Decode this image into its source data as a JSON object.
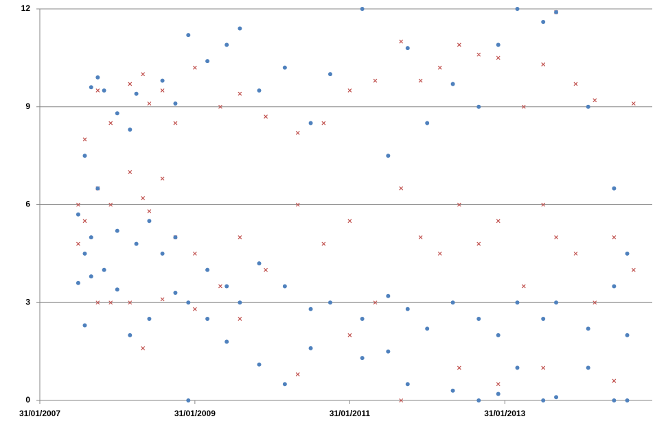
{
  "chart_data": {
    "type": "scatter",
    "xlim": [
      "31/01/2007",
      "27/12/2014"
    ],
    "xticks": [
      "31/01/2007",
      "31/01/2009",
      "31/01/2011",
      "31/01/2013"
    ],
    "ylim": [
      0,
      12
    ],
    "yticks": [
      0,
      3,
      6,
      9,
      12
    ],
    "grid": true,
    "series": [
      {
        "color": "#c0504d",
        "marker": "x",
        "x": [
          "31/07/2007",
          "31/07/2007",
          "31/08/2007",
          "31/08/2007",
          "31/10/2007",
          "31/10/2007",
          "31/10/2007",
          "31/12/2007",
          "31/12/2007",
          "31/12/2007",
          "31/03/2008",
          "31/03/2008",
          "31/03/2008",
          "31/05/2008",
          "31/05/2008",
          "31/05/2008",
          "30/06/2008",
          "30/06/2008",
          "31/08/2008",
          "31/08/2008",
          "31/08/2008",
          "31/10/2008",
          "31/10/2008",
          "31/01/2009",
          "31/01/2009",
          "31/01/2009",
          "31/05/2009",
          "31/05/2009",
          "31/08/2009",
          "31/08/2009",
          "31/08/2009",
          "31/12/2009",
          "31/12/2009",
          "31/05/2010",
          "31/05/2010",
          "31/05/2010",
          "30/09/2010",
          "30/09/2010",
          "31/01/2011",
          "31/01/2011",
          "31/01/2011",
          "31/05/2011",
          "31/05/2011",
          "30/09/2011",
          "30/09/2011",
          "30/09/2011",
          "31/12/2011",
          "31/12/2011",
          "31/03/2012",
          "31/03/2012",
          "30/06/2012",
          "30/06/2012",
          "30/06/2012",
          "30/09/2012",
          "30/09/2012",
          "31/12/2012",
          "31/12/2012",
          "31/12/2012",
          "30/04/2013",
          "30/04/2013",
          "31/07/2013",
          "31/07/2013",
          "31/07/2013",
          "30/09/2013",
          "30/09/2013",
          "31/12/2013",
          "31/12/2013",
          "31/03/2014",
          "31/03/2014",
          "30/06/2014",
          "30/06/2014",
          "30/09/2014",
          "30/09/2014"
        ],
        "values": [
          6.0,
          4.8,
          8.0,
          5.5,
          9.5,
          6.5,
          3.0,
          8.5,
          3.0,
          6.0,
          9.7,
          7.0,
          3.0,
          10.0,
          1.6,
          6.2,
          9.1,
          5.8,
          9.5,
          6.8,
          3.1,
          8.5,
          5.0,
          10.2,
          4.5,
          2.8,
          9.0,
          3.5,
          9.4,
          5.0,
          2.5,
          8.7,
          4.0,
          0.8,
          6.0,
          8.2,
          8.5,
          4.8,
          9.5,
          5.5,
          2.0,
          9.8,
          3.0,
          11.0,
          0.0,
          6.5,
          9.8,
          5.0,
          10.2,
          4.5,
          10.9,
          6.0,
          1.0,
          10.6,
          4.8,
          10.5,
          0.5,
          5.5,
          9.0,
          3.5,
          10.3,
          1.0,
          6.0,
          11.9,
          5.0,
          9.7,
          4.5,
          9.2,
          3.0,
          0.6,
          5.0,
          9.1,
          4.0
        ]
      },
      {
        "color": "#4f81bd",
        "marker": "circle",
        "x": [
          "31/07/2007",
          "31/07/2007",
          "31/08/2007",
          "31/08/2007",
          "31/08/2007",
          "30/09/2007",
          "30/09/2007",
          "30/09/2007",
          "31/10/2007",
          "31/10/2007",
          "30/11/2007",
          "30/11/2007",
          "31/01/2008",
          "31/01/2008",
          "31/01/2008",
          "31/03/2008",
          "31/03/2008",
          "30/04/2008",
          "30/04/2008",
          "30/06/2008",
          "30/06/2008",
          "31/08/2008",
          "31/08/2008",
          "31/10/2008",
          "31/10/2008",
          "31/10/2008",
          "31/12/2008",
          "31/12/2008",
          "31/12/2008",
          "31/03/2009",
          "31/03/2009",
          "31/03/2009",
          "30/06/2009",
          "30/06/2009",
          "30/06/2009",
          "31/08/2009",
          "31/08/2009",
          "30/11/2009",
          "30/11/2009",
          "30/11/2009",
          "31/03/2010",
          "31/03/2010",
          "31/03/2010",
          "31/07/2010",
          "31/07/2010",
          "31/07/2010",
          "31/10/2010",
          "31/10/2010",
          "31/03/2011",
          "31/03/2011",
          "31/03/2011",
          "31/07/2011",
          "31/07/2011",
          "31/07/2011",
          "31/10/2011",
          "31/10/2011",
          "31/10/2011",
          "31/01/2012",
          "31/01/2012",
          "31/05/2012",
          "31/05/2012",
          "31/05/2012",
          "30/09/2012",
          "30/09/2012",
          "30/09/2012",
          "31/12/2012",
          "31/12/2012",
          "31/12/2012",
          "31/03/2013",
          "31/03/2013",
          "31/03/2013",
          "31/07/2013",
          "31/07/2013",
          "31/07/2013",
          "30/09/2013",
          "30/09/2013",
          "30/09/2013",
          "28/02/2014",
          "28/02/2014",
          "28/02/2014",
          "30/06/2014",
          "30/06/2014",
          "30/06/2014",
          "31/08/2014",
          "31/08/2014",
          "31/08/2014"
        ],
        "values": [
          5.7,
          3.6,
          7.5,
          4.5,
          2.3,
          9.6,
          5.0,
          3.8,
          9.9,
          6.5,
          9.5,
          4.0,
          8.8,
          5.2,
          3.4,
          8.3,
          2.0,
          9.4,
          4.8,
          2.5,
          5.5,
          9.8,
          4.5,
          9.1,
          5.0,
          3.3,
          11.2,
          0.0,
          3.0,
          10.4,
          4.0,
          2.5,
          10.9,
          3.5,
          1.8,
          11.4,
          3.0,
          9.5,
          1.1,
          4.2,
          10.2,
          0.5,
          3.5,
          8.5,
          2.8,
          1.6,
          10.0,
          3.0,
          12.0,
          2.5,
          1.3,
          7.5,
          1.5,
          3.2,
          10.8,
          0.5,
          2.8,
          8.5,
          2.2,
          9.7,
          0.3,
          3.0,
          9.0,
          0.0,
          2.5,
          10.9,
          0.2,
          2.0,
          12.0,
          3.0,
          1.0,
          11.6,
          0.0,
          2.5,
          11.9,
          0.1,
          3.0,
          9.0,
          1.0,
          2.2,
          0.0,
          3.5,
          6.5,
          0.0,
          2.0,
          4.5
        ]
      }
    ]
  }
}
